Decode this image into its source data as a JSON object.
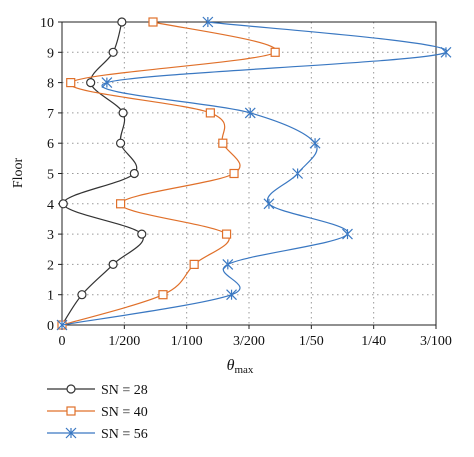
{
  "chart_data": {
    "type": "line",
    "xlabel": "θ",
    "xlabel_sub": "max",
    "ylabel": "Floor",
    "xlim": [
      0,
      0.03
    ],
    "ylim": [
      0,
      10
    ],
    "x_ticks": [
      {
        "value": 0,
        "label": "0"
      },
      {
        "value": 0.005,
        "label": "1/200"
      },
      {
        "value": 0.01,
        "label": "1/100"
      },
      {
        "value": 0.015,
        "label": "3/200"
      },
      {
        "value": 0.02,
        "label": "1/50"
      },
      {
        "value": 0.025,
        "label": "1/40"
      },
      {
        "value": 0.03,
        "label": "3/100"
      }
    ],
    "y_ticks": [
      {
        "value": 0,
        "label": "0"
      },
      {
        "value": 1,
        "label": "1"
      },
      {
        "value": 2,
        "label": "2"
      },
      {
        "value": 3,
        "label": "3"
      },
      {
        "value": 4,
        "label": "4"
      },
      {
        "value": 5,
        "label": "5"
      },
      {
        "value": 6,
        "label": "6"
      },
      {
        "value": 7,
        "label": "7"
      },
      {
        "value": 8,
        "label": "8"
      },
      {
        "value": 9,
        "label": "9"
      },
      {
        "value": 10,
        "label": "10"
      }
    ],
    "grid": "dotted",
    "legend_position": "bottom-left",
    "series": [
      {
        "name": "SN = 28",
        "color": "#333333",
        "marker": "circle",
        "points": [
          [
            0,
            0
          ],
          [
            0.0016,
            1
          ],
          [
            0.0041,
            2
          ],
          [
            0.0064,
            3
          ],
          [
            0.0001,
            4
          ],
          [
            0.0058,
            5
          ],
          [
            0.0047,
            6
          ],
          [
            0.0049,
            7
          ],
          [
            0.0023,
            8
          ],
          [
            0.0041,
            9
          ],
          [
            0.0048,
            10
          ]
        ]
      },
      {
        "name": "SN = 40",
        "color": "#e0702a",
        "marker": "square",
        "points": [
          [
            0,
            0
          ],
          [
            0.0081,
            1
          ],
          [
            0.0106,
            2
          ],
          [
            0.0132,
            3
          ],
          [
            0.0047,
            4
          ],
          [
            0.0138,
            5
          ],
          [
            0.0129,
            6
          ],
          [
            0.0119,
            7
          ],
          [
            0.0007,
            8
          ],
          [
            0.0171,
            9
          ],
          [
            0.0073,
            10
          ]
        ]
      },
      {
        "name": "SN = 56",
        "color": "#3a78c2",
        "marker": "star",
        "points": [
          [
            0,
            0
          ],
          [
            0.0136,
            1
          ],
          [
            0.0133,
            2
          ],
          [
            0.0229,
            3
          ],
          [
            0.0166,
            4
          ],
          [
            0.0189,
            5
          ],
          [
            0.0203,
            6
          ],
          [
            0.0151,
            7
          ],
          [
            0.0036,
            8
          ],
          [
            0.0308,
            9
          ],
          [
            0.0117,
            10
          ]
        ]
      }
    ]
  }
}
